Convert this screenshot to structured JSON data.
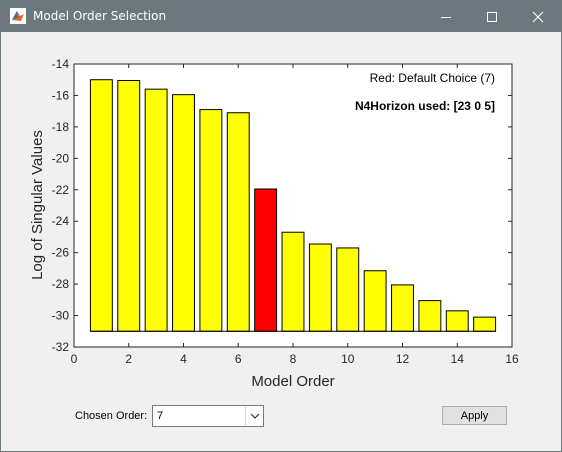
{
  "window": {
    "title": "Model Order Selection",
    "controls": {
      "minimize": "minimize-icon",
      "maximize": "maximize-icon",
      "close": "close-icon"
    }
  },
  "chart_data": {
    "type": "bar",
    "x": [
      1,
      2,
      3,
      4,
      5,
      6,
      7,
      8,
      9,
      10,
      11,
      12,
      13,
      14,
      15
    ],
    "values": [
      -15.0,
      -15.05,
      -15.6,
      -15.95,
      -16.9,
      -17.1,
      -21.95,
      -24.7,
      -25.45,
      -25.7,
      -27.15,
      -28.05,
      -29.05,
      -29.7,
      -30.1
    ],
    "highlight_x": 7,
    "baseline": -31,
    "bar_color": "#ffff00",
    "highlight_color": "#ff0000",
    "xlabel": "Model Order",
    "ylabel": "Log of Singular Values",
    "xlim": [
      0,
      16
    ],
    "ylim": [
      -32,
      -14
    ],
    "xticks": [
      "0",
      "2",
      "4",
      "6",
      "8",
      "10",
      "12",
      "14",
      "16"
    ],
    "yticks": [
      "-14",
      "-16",
      "-18",
      "-20",
      "-22",
      "-24",
      "-26",
      "-28",
      "-30",
      "-32"
    ],
    "annotations": {
      "default_choice": "Red: Default Choice (7)",
      "horizon": "N4Horizon used: [23 0 5]"
    }
  },
  "controls": {
    "chosen_order_label": "Chosen Order:",
    "chosen_order_value": "7",
    "apply_label": "Apply"
  }
}
